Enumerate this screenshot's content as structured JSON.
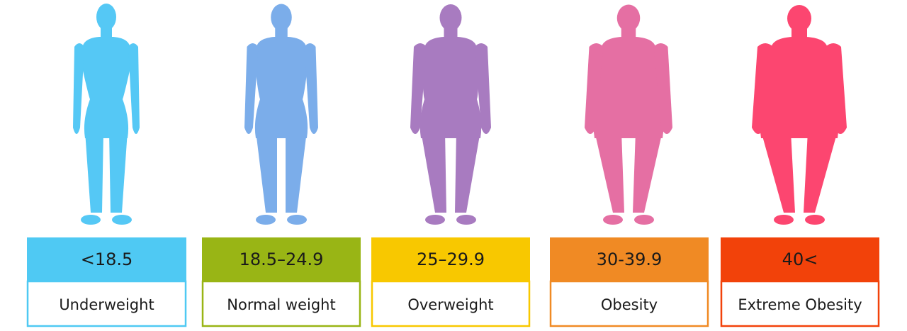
{
  "items": [
    {
      "range": "<18.5",
      "label": "Underweight",
      "color": "#4fc9f3",
      "figure_color": "#55c8f5"
    },
    {
      "range": "18.5–24.9",
      "label": "Normal weight",
      "color": "#99b515",
      "figure_color": "#7badea"
    },
    {
      "range": "25–29.9",
      "label": "Overweight",
      "color": "#f8c800",
      "figure_color": "#a87bc0"
    },
    {
      "range": "30-39.9",
      "label": "Obesity",
      "color": "#f08a24",
      "figure_color": "#e56fa3"
    },
    {
      "range": "40<",
      "label": "Extreme Obesity",
      "color": "#f2420a",
      "figure_color": "#fc4670"
    }
  ]
}
